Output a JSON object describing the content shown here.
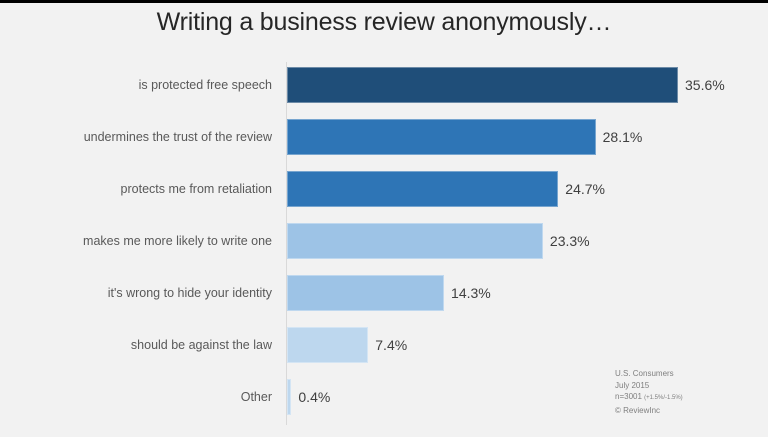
{
  "title": "Writing a business review anonymously…",
  "chart_data": {
    "type": "bar",
    "orientation": "horizontal",
    "title": "Writing a business review anonymously…",
    "xlabel": "",
    "ylabel": "",
    "categories": [
      "is protected free speech",
      "undermines the trust of the review",
      "protects me from retaliation",
      "makes me more likely to write one",
      "it's wrong to hide your identity",
      "should be against the law",
      "Other"
    ],
    "values": [
      35.6,
      28.1,
      24.7,
      23.3,
      14.3,
      7.4,
      0.4
    ],
    "value_labels": [
      "35.6%",
      "28.1%",
      "24.7%",
      "23.3%",
      "14.3%",
      "7.4%",
      "0.4%"
    ],
    "colors": [
      "#1f4e79",
      "#2e75b6",
      "#2e75b6",
      "#9dc3e6",
      "#9dc3e6",
      "#bdd7ee",
      "#bdd7ee"
    ],
    "grid": false,
    "legend": "none",
    "xlim": [
      0,
      40
    ]
  },
  "source": {
    "line1": "U.S. Consumers",
    "line2": "July 2015",
    "line3": "n=3001",
    "margin": "(+1.5%/-1.5%)",
    "line4": "© ReviewInc"
  }
}
